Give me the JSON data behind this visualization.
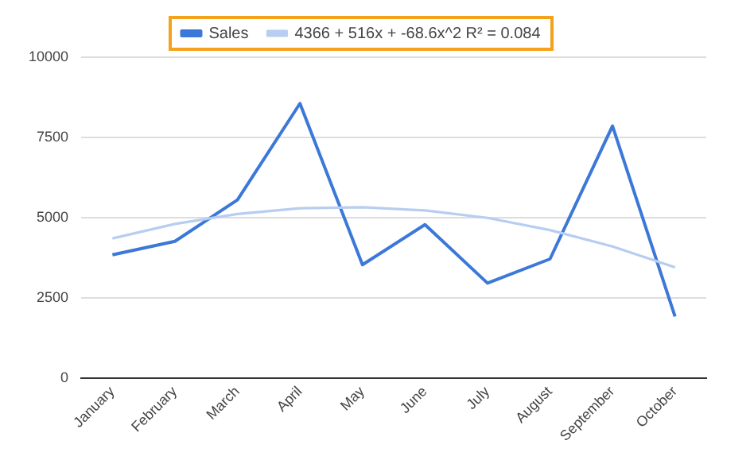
{
  "chart_data": {
    "type": "line",
    "categories": [
      "January",
      "February",
      "March",
      "April",
      "May",
      "June",
      "July",
      "August",
      "September",
      "October"
    ],
    "series": [
      {
        "name": "Sales",
        "color": "#3c78d8",
        "values": [
          3850,
          4270,
          5560,
          8560,
          3540,
          4790,
          2970,
          3720,
          7860,
          1930
        ]
      },
      {
        "name": "4366 + 516x + -68.6x^2 R² = 0.084",
        "color": "#b7cdf1",
        "type": "line",
        "values": [
          4360,
          4810,
          5120,
          5300,
          5330,
          5230,
          5000,
          4620,
          4110,
          3460
        ]
      }
    ],
    "ylim": [
      0,
      10000
    ],
    "yticks": [
      0,
      2500,
      5000,
      7500,
      10000
    ],
    "grid": "y",
    "legend": "top",
    "marker": "none"
  }
}
